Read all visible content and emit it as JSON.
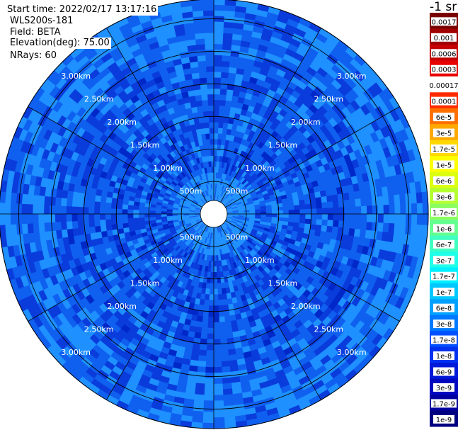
{
  "header": {
    "start_time": "Start time: 2022/02/17 13:17:16",
    "instrument": "WLS200s-181",
    "field": "Field: BETA",
    "elevation": "Elevation(deg): 75.00",
    "nrays": "NRays: 60"
  },
  "chart_data": {
    "type": "heatmap",
    "projection": "polar",
    "n_rays": 60,
    "range_rings_m": [
      500,
      1000,
      1500,
      2000,
      2500,
      3000
    ],
    "ring_labels": [
      "500m",
      "1.00km",
      "1.50km",
      "2.00km",
      "2.50km",
      "3.00km"
    ],
    "max_range_m": 3300,
    "colorbar": {
      "unit": "-1 sr",
      "scale": "log",
      "tick_labels": [
        "0.0017",
        "0.001",
        "0.0006",
        "0.0003",
        "0.00017",
        "0.0001",
        "6e-5",
        "3e-5",
        "1.7e-5",
        "1e-5",
        "6e-6",
        "3e-6",
        "1.7e-6",
        "1e-6",
        "6e-7",
        "3e-7",
        "1.7e-7",
        "1e-7",
        "6e-8",
        "3e-8",
        "1.7e-8",
        "1e-8",
        "6e-9",
        "3e-9",
        "1.7e-9",
        "1e-9"
      ],
      "colors": [
        "#7a0000",
        "#a00000",
        "#c40000",
        "#e80000",
        "#ffffff",
        "#ff2a00",
        "#ff7000",
        "#ffa800",
        "#ffd800",
        "#ffff00",
        "#dcff10",
        "#b4ff30",
        "#8cff60",
        "#64ff90",
        "#40ffc0",
        "#20ffe8",
        "#00f0ff",
        "#00c8ff",
        "#00a0ff",
        "#0078ff",
        "#0050ff",
        "#0030f0",
        "#0018d8",
        "#0008c0",
        "#0000a0",
        "#000080"
      ]
    },
    "field_colors": [
      "#1e90ff",
      "#1060f0",
      "#0a3cdc",
      "#0028c8"
    ],
    "grid": true
  }
}
